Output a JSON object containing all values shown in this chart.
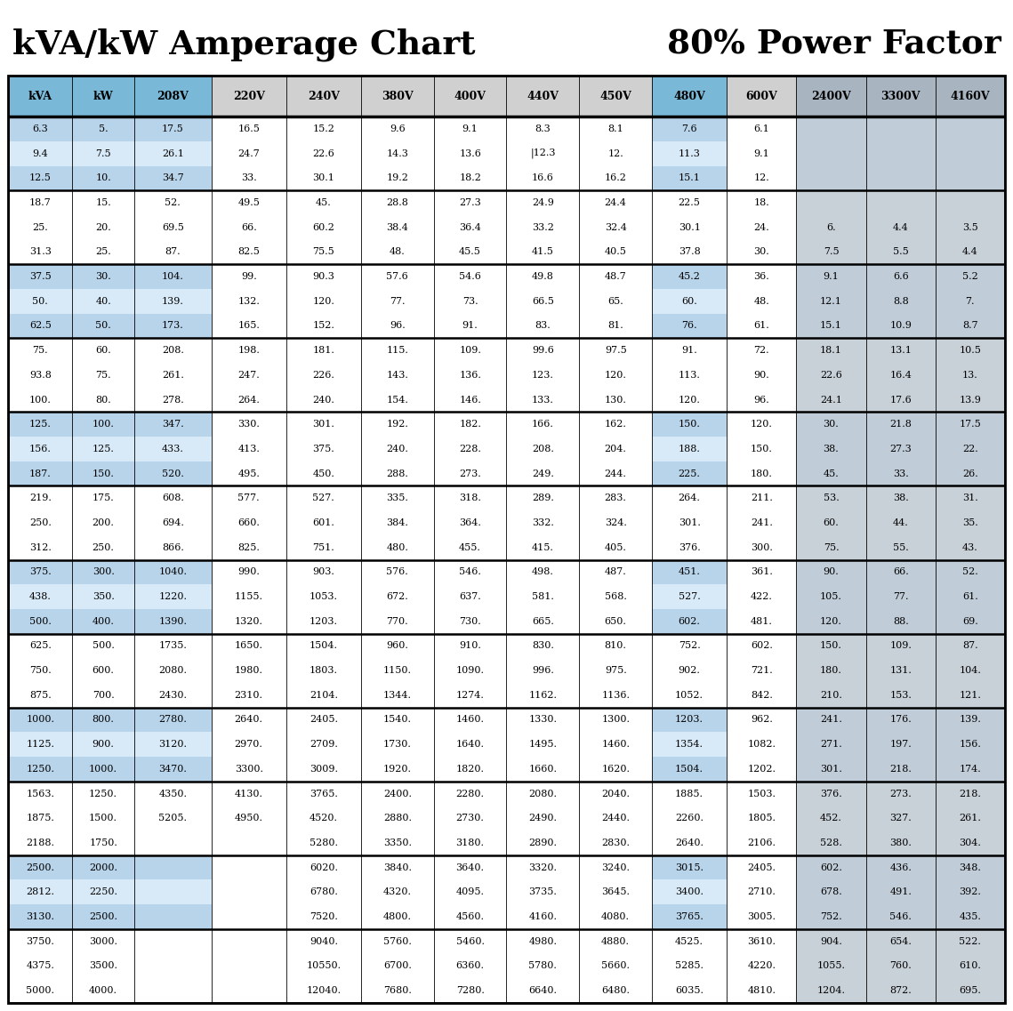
{
  "title_left": "kVA/kW Amperage Chart",
  "title_right": "80% Power Factor",
  "headers": [
    "kVA",
    "kW",
    "208V",
    "220V",
    "240V",
    "380V",
    "400V",
    "440V",
    "450V",
    "480V",
    "600V",
    "2400V",
    "3300V",
    "4160V"
  ],
  "groups": [
    {
      "rows": [
        [
          "6.3",
          "5.",
          "17.5",
          "16.5",
          "15.2",
          "9.6",
          "9.1",
          "8.3",
          "8.1",
          "7.6",
          "6.1",
          "",
          "",
          ""
        ],
        [
          "9.4",
          "7.5",
          "26.1",
          "24.7",
          "22.6",
          "14.3",
          "13.6",
          "|12.3",
          "12.",
          "11.3",
          "9.1",
          "",
          "",
          ""
        ],
        [
          "12.5",
          "10.",
          "34.7",
          "33.",
          "30.1",
          "19.2",
          "18.2",
          "16.6",
          "16.2",
          "15.1",
          "12.",
          "",
          "",
          ""
        ]
      ],
      "is_blue": true
    },
    {
      "rows": [
        [
          "18.7",
          "15.",
          "52.",
          "49.5",
          "45.",
          "28.8",
          "27.3",
          "24.9",
          "24.4",
          "22.5",
          "18.",
          "",
          "",
          ""
        ],
        [
          "25.",
          "20.",
          "69.5",
          "66.",
          "60.2",
          "38.4",
          "36.4",
          "33.2",
          "32.4",
          "30.1",
          "24.",
          "6.",
          "4.4",
          "3.5"
        ],
        [
          "31.3",
          "25.",
          "87.",
          "82.5",
          "75.5",
          "48.",
          "45.5",
          "41.5",
          "40.5",
          "37.8",
          "30.",
          "7.5",
          "5.5",
          "4.4"
        ]
      ],
      "is_blue": false
    },
    {
      "rows": [
        [
          "37.5",
          "30.",
          "104.",
          "99.",
          "90.3",
          "57.6",
          "54.6",
          "49.8",
          "48.7",
          "45.2",
          "36.",
          "9.1",
          "6.6",
          "5.2"
        ],
        [
          "50.",
          "40.",
          "139.",
          "132.",
          "120.",
          "77.",
          "73.",
          "66.5",
          "65.",
          "60.",
          "48.",
          "12.1",
          "8.8",
          "7."
        ],
        [
          "62.5",
          "50.",
          "173.",
          "165.",
          "152.",
          "96.",
          "91.",
          "83.",
          "81.",
          "76.",
          "61.",
          "15.1",
          "10.9",
          "8.7"
        ]
      ],
      "is_blue": true
    },
    {
      "rows": [
        [
          "75.",
          "60.",
          "208.",
          "198.",
          "181.",
          "115.",
          "109.",
          "99.6",
          "97.5",
          "91.",
          "72.",
          "18.1",
          "13.1",
          "10.5"
        ],
        [
          "93.8",
          "75.",
          "261.",
          "247.",
          "226.",
          "143.",
          "136.",
          "123.",
          "120.",
          "113.",
          "90.",
          "22.6",
          "16.4",
          "13."
        ],
        [
          "100.",
          "80.",
          "278.",
          "264.",
          "240.",
          "154.",
          "146.",
          "133.",
          "130.",
          "120.",
          "96.",
          "24.1",
          "17.6",
          "13.9"
        ]
      ],
      "is_blue": false
    },
    {
      "rows": [
        [
          "125.",
          "100.",
          "347.",
          "330.",
          "301.",
          "192.",
          "182.",
          "166.",
          "162.",
          "150.",
          "120.",
          "30.",
          "21.8",
          "17.5"
        ],
        [
          "156.",
          "125.",
          "433.",
          "413.",
          "375.",
          "240.",
          "228.",
          "208.",
          "204.",
          "188.",
          "150.",
          "38.",
          "27.3",
          "22."
        ],
        [
          "187.",
          "150.",
          "520.",
          "495.",
          "450.",
          "288.",
          "273.",
          "249.",
          "244.",
          "225.",
          "180.",
          "45.",
          "33.",
          "26."
        ]
      ],
      "is_blue": true
    },
    {
      "rows": [
        [
          "219.",
          "175.",
          "608.",
          "577.",
          "527.",
          "335.",
          "318.",
          "289.",
          "283.",
          "264.",
          "211.",
          "53.",
          "38.",
          "31."
        ],
        [
          "250.",
          "200.",
          "694.",
          "660.",
          "601.",
          "384.",
          "364.",
          "332.",
          "324.",
          "301.",
          "241.",
          "60.",
          "44.",
          "35."
        ],
        [
          "312.",
          "250.",
          "866.",
          "825.",
          "751.",
          "480.",
          "455.",
          "415.",
          "405.",
          "376.",
          "300.",
          "75.",
          "55.",
          "43."
        ]
      ],
      "is_blue": false
    },
    {
      "rows": [
        [
          "375.",
          "300.",
          "1040.",
          "990.",
          "903.",
          "576.",
          "546.",
          "498.",
          "487.",
          "451.",
          "361.",
          "90.",
          "66.",
          "52."
        ],
        [
          "438.",
          "350.",
          "1220.",
          "1155.",
          "1053.",
          "672.",
          "637.",
          "581.",
          "568.",
          "527.",
          "422.",
          "105.",
          "77.",
          "61."
        ],
        [
          "500.",
          "400.",
          "1390.",
          "1320.",
          "1203.",
          "770.",
          "730.",
          "665.",
          "650.",
          "602.",
          "481.",
          "120.",
          "88.",
          "69."
        ]
      ],
      "is_blue": true
    },
    {
      "rows": [
        [
          "625.",
          "500.",
          "1735.",
          "1650.",
          "1504.",
          "960.",
          "910.",
          "830.",
          "810.",
          "752.",
          "602.",
          "150.",
          "109.",
          "87."
        ],
        [
          "750.",
          "600.",
          "2080.",
          "1980.",
          "1803.",
          "1150.",
          "1090.",
          "996.",
          "975.",
          "902.",
          "721.",
          "180.",
          "131.",
          "104."
        ],
        [
          "875.",
          "700.",
          "2430.",
          "2310.",
          "2104.",
          "1344.",
          "1274.",
          "1162.",
          "1136.",
          "1052.",
          "842.",
          "210.",
          "153.",
          "121."
        ]
      ],
      "is_blue": false
    },
    {
      "rows": [
        [
          "1000.",
          "800.",
          "2780.",
          "2640.",
          "2405.",
          "1540.",
          "1460.",
          "1330.",
          "1300.",
          "1203.",
          "962.",
          "241.",
          "176.",
          "139."
        ],
        [
          "1125.",
          "900.",
          "3120.",
          "2970.",
          "2709.",
          "1730.",
          "1640.",
          "1495.",
          "1460.",
          "1354.",
          "1082.",
          "271.",
          "197.",
          "156."
        ],
        [
          "1250.",
          "1000.",
          "3470.",
          "3300.",
          "3009.",
          "1920.",
          "1820.",
          "1660.",
          "1620.",
          "1504.",
          "1202.",
          "301.",
          "218.",
          "174."
        ]
      ],
      "is_blue": true
    },
    {
      "rows": [
        [
          "1563.",
          "1250.",
          "4350.",
          "4130.",
          "3765.",
          "2400.",
          "2280.",
          "2080.",
          "2040.",
          "1885.",
          "1503.",
          "376.",
          "273.",
          "218."
        ],
        [
          "1875.",
          "1500.",
          "5205.",
          "4950.",
          "4520.",
          "2880.",
          "2730.",
          "2490.",
          "2440.",
          "2260.",
          "1805.",
          "452.",
          "327.",
          "261."
        ],
        [
          "2188.",
          "1750.",
          "",
          "",
          "5280.",
          "3350.",
          "3180.",
          "2890.",
          "2830.",
          "2640.",
          "2106.",
          "528.",
          "380.",
          "304."
        ]
      ],
      "is_blue": false
    },
    {
      "rows": [
        [
          "2500.",
          "2000.",
          "",
          "",
          "6020.",
          "3840.",
          "3640.",
          "3320.",
          "3240.",
          "3015.",
          "2405.",
          "602.",
          "436.",
          "348."
        ],
        [
          "2812.",
          "2250.",
          "",
          "",
          "6780.",
          "4320.",
          "4095.",
          "3735.",
          "3645.",
          "3400.",
          "2710.",
          "678.",
          "491.",
          "392."
        ],
        [
          "3130.",
          "2500.",
          "",
          "",
          "7520.",
          "4800.",
          "4560.",
          "4160.",
          "4080.",
          "3765.",
          "3005.",
          "752.",
          "546.",
          "435."
        ]
      ],
      "is_blue": true
    },
    {
      "rows": [
        [
          "3750.",
          "3000.",
          "",
          "",
          "9040.",
          "5760.",
          "5460.",
          "4980.",
          "4880.",
          "4525.",
          "3610.",
          "904.",
          "654.",
          "522."
        ],
        [
          "4375.",
          "3500.",
          "",
          "",
          "10550.",
          "6700.",
          "6360.",
          "5780.",
          "5660.",
          "5285.",
          "4220.",
          "1055.",
          "760.",
          "610."
        ],
        [
          "5000.",
          "4000.",
          "",
          "",
          "12040.",
          "7680.",
          "7280.",
          "6640.",
          "6480.",
          "6035.",
          "4810.",
          "1204.",
          "872.",
          "695."
        ]
      ],
      "is_blue": false
    }
  ],
  "colors": {
    "blue_row1": "#b8d4ea",
    "blue_row2": "#d8eaf8",
    "blue_row3": "#b8d4ea",
    "white_row": "#ffffff",
    "header_blue": "#7ab8d8",
    "header_white": "#d0d0d0",
    "header_gray": "#a8b4c0",
    "gray_col_blue_group": "#c0ccd8",
    "gray_col_white_group": "#c8d0d8",
    "border_color": "#000000",
    "text_color": "#000000"
  },
  "col_widths_rel": [
    6.0,
    5.8,
    7.2,
    7.0,
    7.0,
    6.8,
    6.8,
    6.8,
    6.8,
    7.0,
    6.5,
    6.5,
    6.5,
    6.5
  ]
}
